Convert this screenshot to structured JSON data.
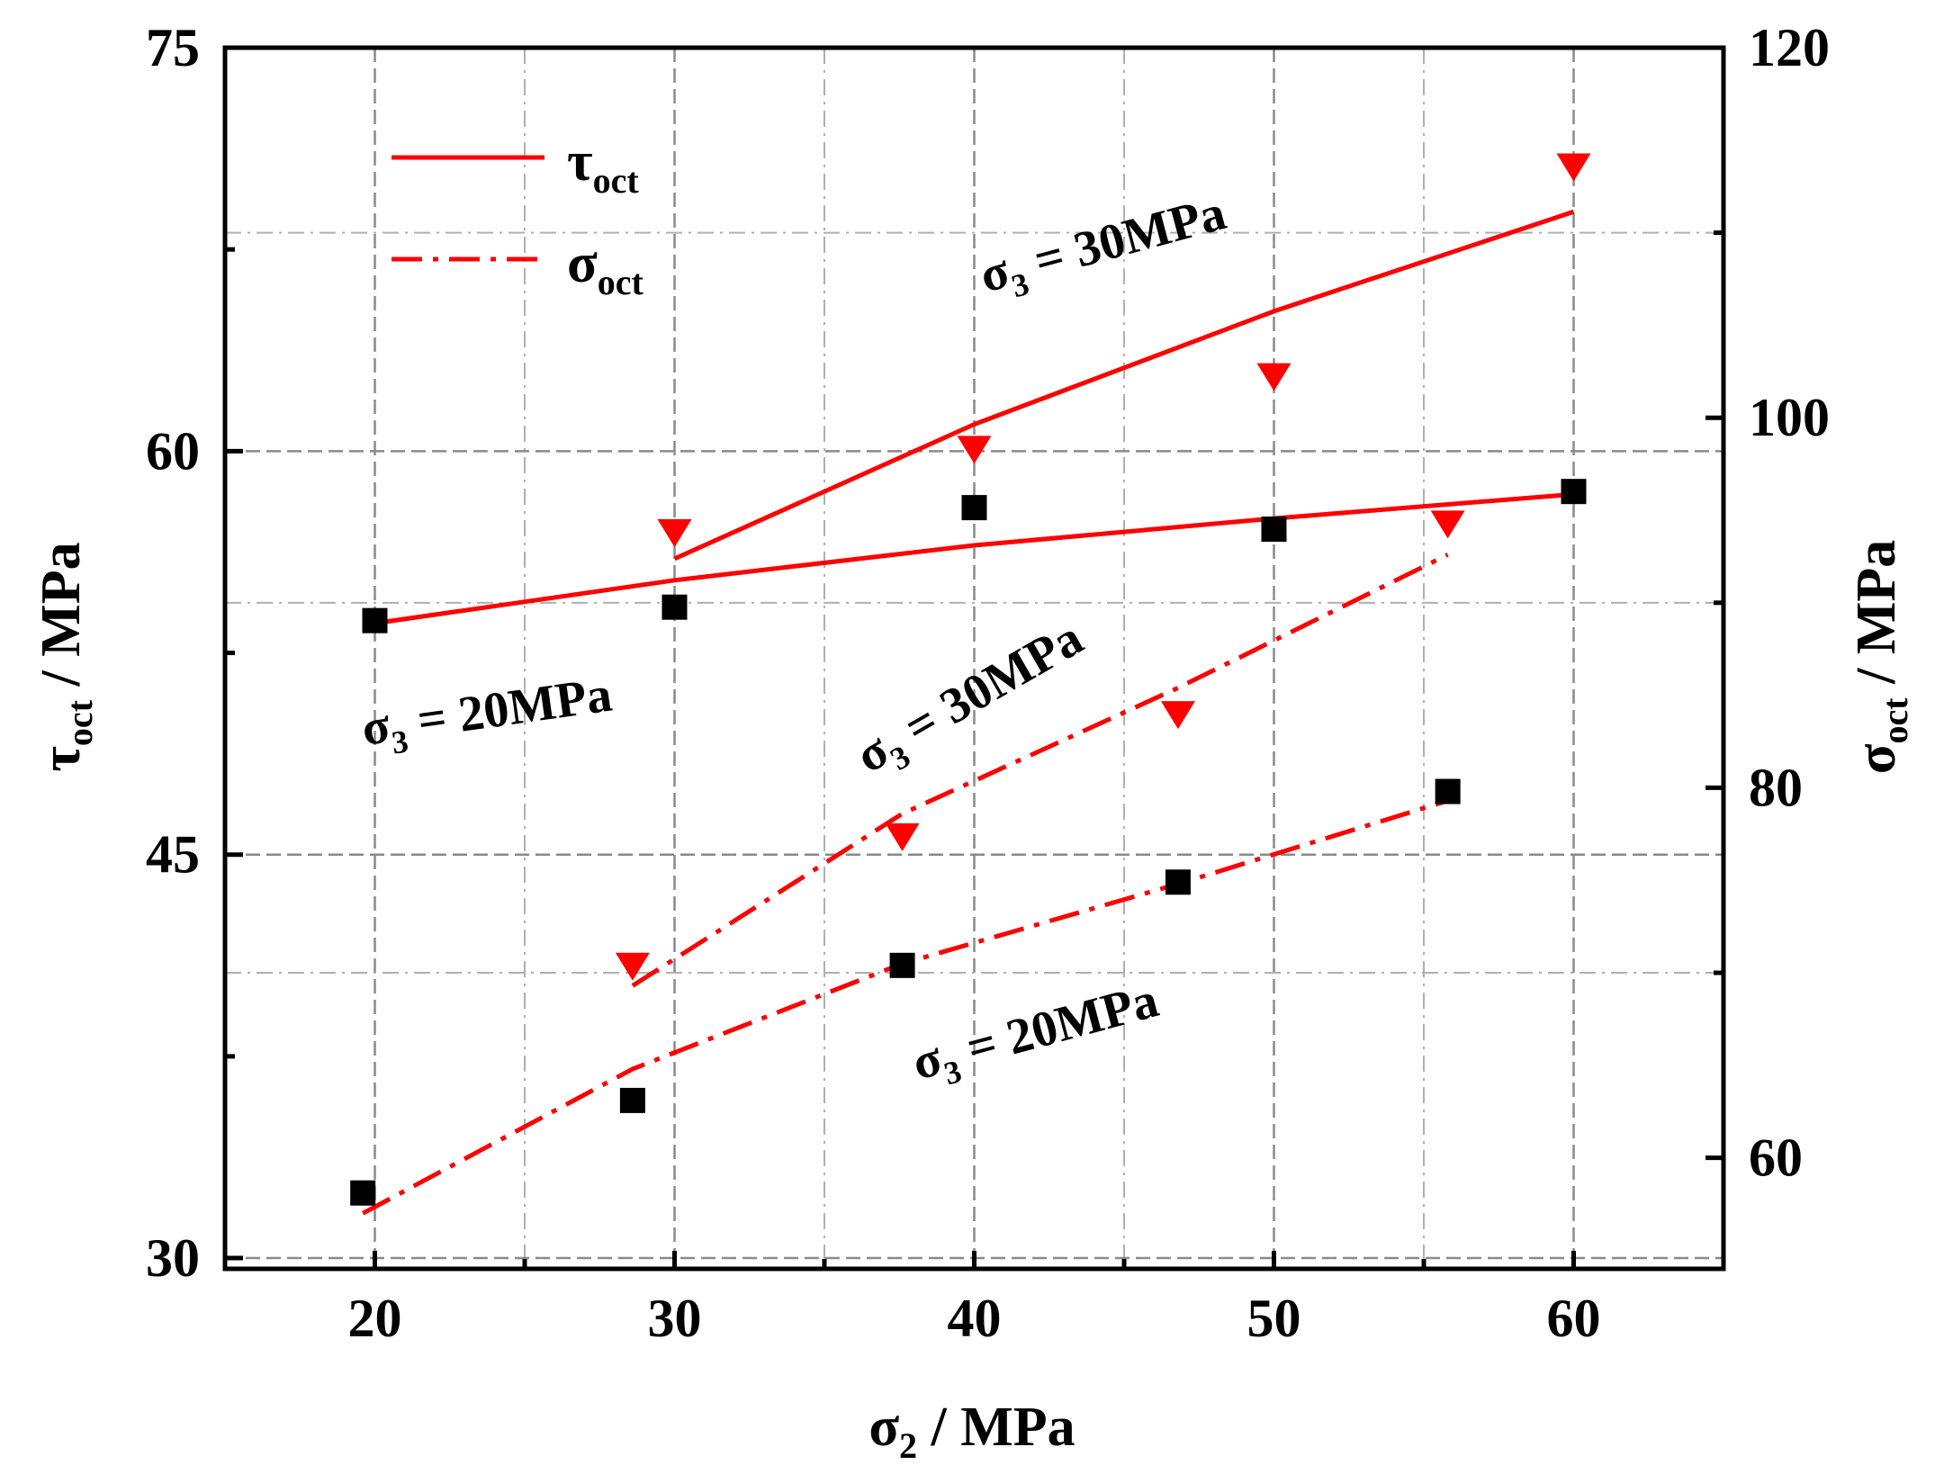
{
  "chart_data": {
    "type": "line",
    "xlabel_base": "σ",
    "xlabel_sub": "2",
    "xlabel_unit": " / MPa",
    "ylabel_left_base": "τ",
    "ylabel_left_sub": "oct",
    "ylabel_left_unit": " / MPa",
    "ylabel_right_base": "σ",
    "ylabel_right_sub": "oct",
    "ylabel_right_unit": " / MPa",
    "xlim": [
      15,
      65
    ],
    "ylim_left": [
      29.6,
      75
    ],
    "ylim_right": [
      54,
      120
    ],
    "x_ticks": [
      20,
      30,
      40,
      50,
      60
    ],
    "x_tick_labels": [
      "20",
      "30",
      "40",
      "50",
      "60"
    ],
    "x_minor_ticks": [
      25,
      35,
      45,
      55
    ],
    "y_left_ticks": [
      30,
      45,
      60,
      75
    ],
    "y_left_tick_labels": [
      "30",
      "45",
      "60",
      "75"
    ],
    "y_left_minor_ticks": [
      37.5,
      52.5,
      67.5
    ],
    "y_right_ticks": [
      60,
      80,
      100,
      120
    ],
    "y_right_tick_labels": [
      "60",
      "80",
      "100",
      "120"
    ],
    "y_right_minor_ticks": [
      70,
      90,
      110
    ],
    "legend": [
      {
        "base": "τ",
        "sub": "oct",
        "style": "solid"
      },
      {
        "base": "σ",
        "sub": "oct",
        "style": "dashdot"
      }
    ],
    "series": [
      {
        "name": "τoct σ3=20MPa fit",
        "axis": "left",
        "style": "solid",
        "x": [
          20,
          30,
          40,
          50,
          60
        ],
        "y": [
          53.6,
          55.2,
          56.5,
          57.5,
          58.4
        ]
      },
      {
        "name": "τoct σ3=20MPa data",
        "axis": "left",
        "marker": "square",
        "x": [
          20,
          30,
          40,
          50,
          60
        ],
        "y": [
          53.7,
          54.2,
          57.9,
          57.1,
          58.5
        ]
      },
      {
        "name": "τoct σ3=30MPa fit",
        "axis": "left",
        "style": "solid",
        "x": [
          30,
          40,
          50,
          60
        ],
        "y": [
          56.0,
          61.0,
          65.2,
          68.9
        ]
      },
      {
        "name": "τoct σ3=30MPa data",
        "axis": "left",
        "marker": "triangle-down",
        "x": [
          30,
          40,
          50,
          60
        ],
        "y": [
          57.0,
          60.1,
          62.8,
          70.6
        ]
      },
      {
        "name": "σoct σ3=20MPa fit",
        "axis": "right",
        "style": "dashdot",
        "x": [
          19.6,
          28.6,
          37.6,
          46.8,
          55.8
        ],
        "y": [
          57.0,
          64.8,
          70.5,
          74.8,
          79.3
        ]
      },
      {
        "name": "σoct σ3=20MPa data",
        "axis": "right",
        "marker": "square",
        "x": [
          19.6,
          28.6,
          37.6,
          46.8,
          55.8
        ],
        "y": [
          58.1,
          63.1,
          70.4,
          74.9,
          79.8
        ]
      },
      {
        "name": "σoct σ3=30MPa fit",
        "axis": "right",
        "style": "dashdot",
        "x": [
          28.6,
          37.6,
          46.8,
          55.8
        ],
        "y": [
          69.3,
          78.6,
          85.4,
          92.6
        ]
      },
      {
        "name": "σoct σ3=30MPa data",
        "axis": "right",
        "marker": "triangle-down",
        "x": [
          28.6,
          37.6,
          46.8,
          55.8
        ],
        "y": [
          70.4,
          77.4,
          84.0,
          94.3
        ]
      }
    ],
    "annotations": [
      {
        "base": "σ",
        "sub": "3",
        "text": " = 30MPa",
        "rotate": -15,
        "near": "upper τoct curve"
      },
      {
        "base": "σ",
        "sub": "3",
        "text": " = 20MPa",
        "rotate": -8,
        "near": "lower τoct curve"
      },
      {
        "base": "σ",
        "sub": "3",
        "text": " = 30MPa",
        "rotate": -30,
        "near": "upper σoct curve"
      },
      {
        "base": "σ",
        "sub": "3",
        "text": " = 20MPa",
        "rotate": -15,
        "near": "lower σoct curve"
      }
    ]
  }
}
